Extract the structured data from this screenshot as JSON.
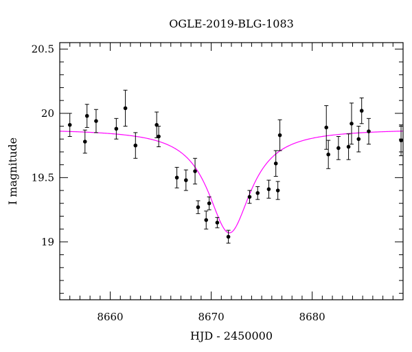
{
  "chart_data": {
    "type": "scatter",
    "title": "OGLE-2019-BLG-1083",
    "xlabel": "HJD - 2450000",
    "ylabel": "I magnitude",
    "xlim": [
      8655,
      8689
    ],
    "ylim": [
      20.55,
      18.55
    ],
    "y_inverted": true,
    "x_ticks": [
      8660,
      8670,
      8680
    ],
    "y_ticks": [
      19,
      19.5,
      20,
      20.5
    ],
    "x_minor_step": 1,
    "y_minor_step": 0.1,
    "grid": false,
    "points_color": "#000000",
    "model_color": "#ff00ff",
    "model": {
      "t0": 8671.8,
      "peak_mag": 19.07,
      "base_mag": 19.88,
      "width": 2.6
    },
    "series": [
      {
        "points": [
          {
            "x": 8656.0,
            "y": 19.91,
            "err": 0.09
          },
          {
            "x": 8657.5,
            "y": 19.78,
            "err": 0.09
          },
          {
            "x": 8657.7,
            "y": 19.98,
            "err": 0.09
          },
          {
            "x": 8658.6,
            "y": 19.94,
            "err": 0.09
          },
          {
            "x": 8660.6,
            "y": 19.88,
            "err": 0.08
          },
          {
            "x": 8661.5,
            "y": 20.04,
            "err": 0.14
          },
          {
            "x": 8662.5,
            "y": 19.75,
            "err": 0.1
          },
          {
            "x": 8664.6,
            "y": 19.91,
            "err": 0.1
          },
          {
            "x": 8664.8,
            "y": 19.82,
            "err": 0.08
          },
          {
            "x": 8666.6,
            "y": 19.5,
            "err": 0.08
          },
          {
            "x": 8667.5,
            "y": 19.48,
            "err": 0.08
          },
          {
            "x": 8668.4,
            "y": 19.55,
            "err": 0.1
          },
          {
            "x": 8668.7,
            "y": 19.27,
            "err": 0.05
          },
          {
            "x": 8669.5,
            "y": 19.17,
            "err": 0.07
          },
          {
            "x": 8669.8,
            "y": 19.3,
            "err": 0.05
          },
          {
            "x": 8670.6,
            "y": 19.15,
            "err": 0.04
          },
          {
            "x": 8671.7,
            "y": 19.04,
            "err": 0.05
          },
          {
            "x": 8673.8,
            "y": 19.35,
            "err": 0.05
          },
          {
            "x": 8674.6,
            "y": 19.38,
            "err": 0.05
          },
          {
            "x": 8675.7,
            "y": 19.41,
            "err": 0.07
          },
          {
            "x": 8676.4,
            "y": 19.61,
            "err": 0.1
          },
          {
            "x": 8676.6,
            "y": 19.4,
            "err": 0.07
          },
          {
            "x": 8676.8,
            "y": 19.83,
            "err": 0.12
          },
          {
            "x": 8681.4,
            "y": 19.89,
            "err": 0.17
          },
          {
            "x": 8681.6,
            "y": 19.68,
            "err": 0.11
          },
          {
            "x": 8682.6,
            "y": 19.73,
            "err": 0.09
          },
          {
            "x": 8683.6,
            "y": 19.74,
            "err": 0.1
          },
          {
            "x": 8683.9,
            "y": 19.92,
            "err": 0.16
          },
          {
            "x": 8684.6,
            "y": 19.8,
            "err": 0.1
          },
          {
            "x": 8684.9,
            "y": 20.02,
            "err": 0.1
          },
          {
            "x": 8685.6,
            "y": 19.86,
            "err": 0.1
          },
          {
            "x": 8688.8,
            "y": 19.79,
            "err": 0.12
          }
        ]
      }
    ]
  }
}
